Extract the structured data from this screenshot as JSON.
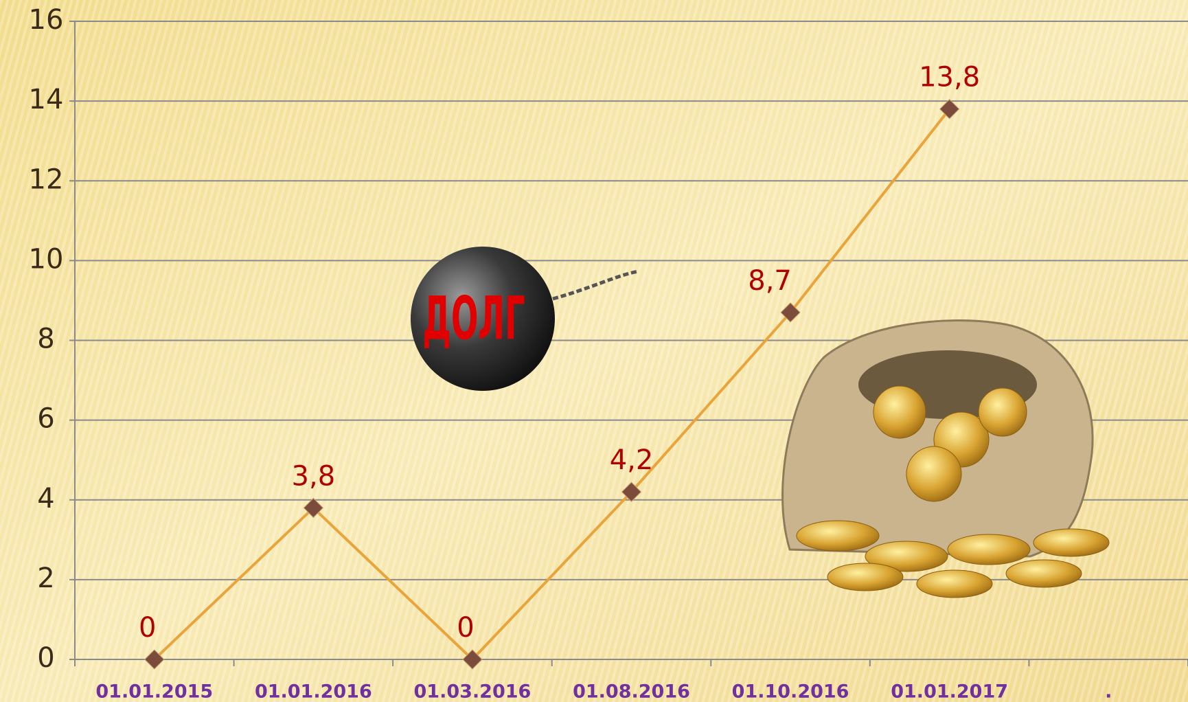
{
  "chart_data": {
    "type": "line",
    "categories": [
      "01.01.2015",
      "01.01.2016",
      "01.03.2016",
      "01.08.2016",
      "01.10.2016",
      "01.01.2017",
      "."
    ],
    "values": [
      0,
      3.8,
      0,
      4.2,
      8.7,
      13.8,
      null
    ],
    "value_labels": [
      "0",
      "3,8",
      "0",
      "4,2",
      "8,7",
      "13,8",
      null
    ],
    "color": "#e9a43c",
    "marker_color": "#7b4b3c",
    "ylim": [
      0,
      16
    ],
    "yticks": [
      0,
      2,
      4,
      6,
      8,
      10,
      12,
      14,
      16
    ],
    "grid": true,
    "annotations": [
      "ДОЛГ"
    ]
  }
}
